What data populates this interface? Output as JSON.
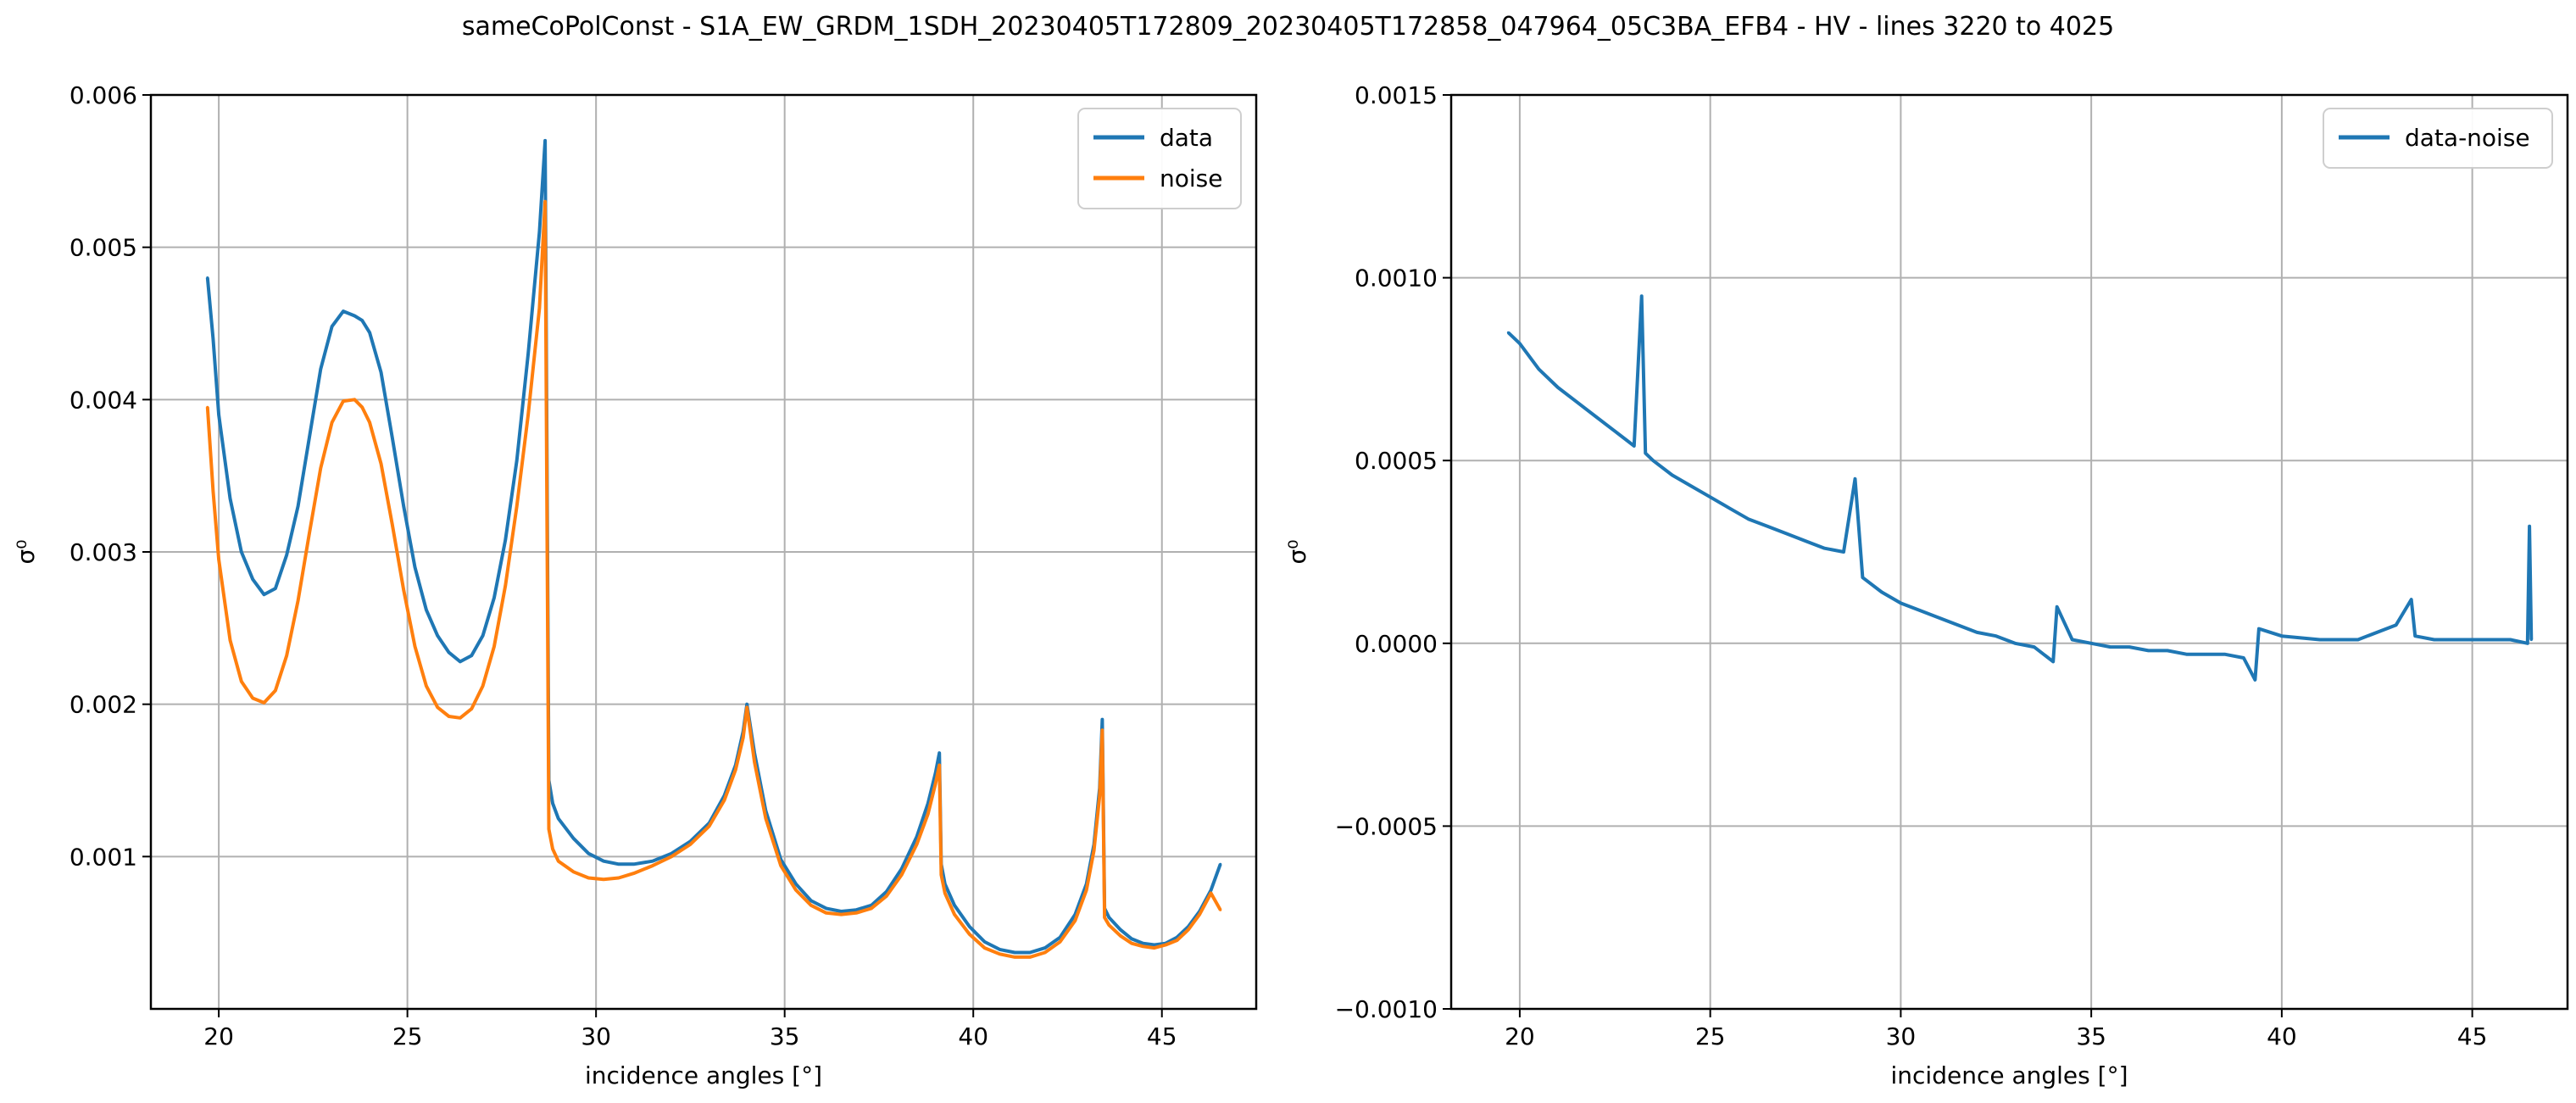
{
  "figure": {
    "title": "sameCoPolConst - S1A_EW_GRDM_1SDH_20230405T172809_20230405T172858_047964_05C3BA_EFB4 - HV - lines 3220 to 4025"
  },
  "colors": {
    "data": "#1f77b4",
    "noise": "#ff7f0e",
    "grid": "#b0b0b0",
    "axis": "#000000"
  },
  "chart_data": [
    {
      "type": "line",
      "xlabel": "incidence angles [°]",
      "ylabel": "σ⁰",
      "xlim": [
        18.2,
        47.5
      ],
      "ylim": [
        0.0,
        0.006
      ],
      "grid": true,
      "legend_position": "top-right",
      "xticks": [
        20,
        25,
        30,
        35,
        40,
        45
      ],
      "xtick_labels": [
        "20",
        "25",
        "30",
        "35",
        "40",
        "45"
      ],
      "yticks": [
        0.001,
        0.002,
        0.003,
        0.004,
        0.005,
        0.006
      ],
      "ytick_labels": [
        "0.001",
        "0.002",
        "0.003",
        "0.004",
        "0.005",
        "0.006"
      ],
      "series": [
        {
          "name": "data",
          "color": "#1f77b4",
          "x": [
            19.7,
            19.85,
            20.0,
            20.3,
            20.6,
            20.9,
            21.2,
            21.5,
            21.8,
            22.1,
            22.4,
            22.7,
            23.0,
            23.3,
            23.6,
            23.8,
            24.0,
            24.3,
            24.6,
            24.9,
            25.2,
            25.5,
            25.8,
            26.1,
            26.4,
            26.7,
            27.0,
            27.3,
            27.6,
            27.9,
            28.2,
            28.5,
            28.65,
            28.75,
            28.85,
            29.0,
            29.4,
            29.8,
            30.2,
            30.6,
            31.0,
            31.5,
            32.0,
            32.5,
            33.0,
            33.4,
            33.7,
            33.9,
            34.0,
            34.2,
            34.5,
            34.9,
            35.3,
            35.7,
            36.1,
            36.5,
            36.9,
            37.3,
            37.7,
            38.1,
            38.5,
            38.8,
            39.0,
            39.1,
            39.15,
            39.25,
            39.5,
            39.9,
            40.3,
            40.7,
            41.1,
            41.5,
            41.9,
            42.3,
            42.7,
            43.0,
            43.2,
            43.35,
            43.42,
            43.48,
            43.6,
            43.9,
            44.2,
            44.5,
            44.8,
            45.1,
            45.4,
            45.7,
            46.0,
            46.3,
            46.55
          ],
          "y": [
            0.0048,
            0.0044,
            0.0039,
            0.00335,
            0.003,
            0.00282,
            0.00272,
            0.00276,
            0.00298,
            0.0033,
            0.00375,
            0.0042,
            0.00448,
            0.00458,
            0.00455,
            0.00452,
            0.00444,
            0.00418,
            0.00375,
            0.0033,
            0.0029,
            0.00262,
            0.00245,
            0.00234,
            0.00228,
            0.00232,
            0.00245,
            0.0027,
            0.00308,
            0.0036,
            0.0043,
            0.0051,
            0.0057,
            0.0015,
            0.00135,
            0.00125,
            0.00112,
            0.00102,
            0.00097,
            0.00095,
            0.00095,
            0.00097,
            0.00102,
            0.0011,
            0.00122,
            0.0014,
            0.0016,
            0.00182,
            0.002,
            0.00168,
            0.0013,
            0.00098,
            0.00082,
            0.00071,
            0.00066,
            0.00064,
            0.00065,
            0.00068,
            0.00077,
            0.00092,
            0.00113,
            0.00135,
            0.00155,
            0.00168,
            0.00095,
            0.00082,
            0.00068,
            0.00054,
            0.00044,
            0.00039,
            0.00037,
            0.00037,
            0.0004,
            0.00047,
            0.00062,
            0.00082,
            0.00108,
            0.00145,
            0.0019,
            0.00066,
            0.0006,
            0.00052,
            0.00046,
            0.00043,
            0.00042,
            0.00043,
            0.00047,
            0.00054,
            0.00064,
            0.00078,
            0.00095
          ]
        },
        {
          "name": "noise",
          "color": "#ff7f0e",
          "x": [
            19.7,
            19.85,
            20.0,
            20.3,
            20.6,
            20.9,
            21.2,
            21.5,
            21.8,
            22.1,
            22.4,
            22.7,
            23.0,
            23.3,
            23.6,
            23.8,
            24.0,
            24.3,
            24.6,
            24.9,
            25.2,
            25.5,
            25.8,
            26.1,
            26.4,
            26.7,
            27.0,
            27.3,
            27.6,
            27.9,
            28.2,
            28.5,
            28.65,
            28.75,
            28.85,
            29.0,
            29.4,
            29.8,
            30.2,
            30.6,
            31.0,
            31.5,
            32.0,
            32.5,
            33.0,
            33.4,
            33.7,
            33.9,
            34.0,
            34.2,
            34.5,
            34.9,
            35.3,
            35.7,
            36.1,
            36.5,
            36.9,
            37.3,
            37.7,
            38.1,
            38.5,
            38.8,
            39.0,
            39.1,
            39.15,
            39.25,
            39.5,
            39.9,
            40.3,
            40.7,
            41.1,
            41.5,
            41.9,
            42.3,
            42.7,
            43.0,
            43.2,
            43.35,
            43.42,
            43.48,
            43.6,
            43.9,
            44.2,
            44.5,
            44.8,
            45.1,
            45.4,
            45.7,
            46.0,
            46.3,
            46.55
          ],
          "y": [
            0.00395,
            0.0034,
            0.00295,
            0.00242,
            0.00215,
            0.00204,
            0.00201,
            0.00209,
            0.00232,
            0.00268,
            0.00312,
            0.00355,
            0.00385,
            0.00399,
            0.004,
            0.00395,
            0.00385,
            0.00358,
            0.00318,
            0.00275,
            0.00238,
            0.00212,
            0.00198,
            0.00192,
            0.00191,
            0.00197,
            0.00212,
            0.00238,
            0.00278,
            0.0033,
            0.0039,
            0.0046,
            0.0053,
            0.00118,
            0.00105,
            0.00097,
            0.0009,
            0.00086,
            0.00085,
            0.00086,
            0.00089,
            0.00094,
            0.001,
            0.00108,
            0.0012,
            0.00137,
            0.00157,
            0.00178,
            0.00198,
            0.00162,
            0.00125,
            0.00094,
            0.00078,
            0.00068,
            0.00063,
            0.00062,
            0.00063,
            0.00066,
            0.00074,
            0.00088,
            0.00108,
            0.00128,
            0.00148,
            0.0016,
            0.00088,
            0.00076,
            0.00062,
            0.00049,
            0.0004,
            0.00036,
            0.00034,
            0.00034,
            0.00037,
            0.00044,
            0.00058,
            0.00078,
            0.00104,
            0.0014,
            0.00183,
            0.0006,
            0.00055,
            0.00048,
            0.00043,
            0.00041,
            0.0004,
            0.00042,
            0.00045,
            0.00052,
            0.00062,
            0.00076,
            0.00065
          ]
        }
      ]
    },
    {
      "type": "line",
      "xlabel": "incidence angles [°]",
      "ylabel": "σ⁰",
      "xlim": [
        18.2,
        47.5
      ],
      "ylim": [
        -0.001,
        0.0015
      ],
      "grid": true,
      "legend_position": "top-right",
      "xticks": [
        20,
        25,
        30,
        35,
        40,
        45
      ],
      "xtick_labels": [
        "20",
        "25",
        "30",
        "35",
        "40",
        "45"
      ],
      "yticks": [
        -0.001,
        -0.0005,
        0.0,
        0.0005,
        0.001,
        0.0015
      ],
      "ytick_labels": [
        "−0.0010",
        "−0.0005",
        "0.0000",
        "0.0005",
        "0.0010",
        "0.0015"
      ],
      "series": [
        {
          "name": "data-noise",
          "color": "#1f77b4",
          "x": [
            19.7,
            20.0,
            20.5,
            21.0,
            21.5,
            22.0,
            22.5,
            23.0,
            23.2,
            23.3,
            23.5,
            24.0,
            24.5,
            25.0,
            25.5,
            26.0,
            26.5,
            27.0,
            27.5,
            28.0,
            28.5,
            28.8,
            29.0,
            29.5,
            30.0,
            30.5,
            31.0,
            31.5,
            32.0,
            32.5,
            33.0,
            33.5,
            34.0,
            34.1,
            34.5,
            35.0,
            35.5,
            36.0,
            36.5,
            37.0,
            37.5,
            38.0,
            38.5,
            39.0,
            39.3,
            39.4,
            40.0,
            41.0,
            42.0,
            43.0,
            43.4,
            43.5,
            44.0,
            45.0,
            46.0,
            46.45,
            46.5,
            46.55
          ],
          "y": [
            0.00085,
            0.00082,
            0.00075,
            0.0007,
            0.00066,
            0.00062,
            0.00058,
            0.00054,
            0.00095,
            0.00052,
            0.0005,
            0.00046,
            0.00043,
            0.0004,
            0.00037,
            0.00034,
            0.00032,
            0.0003,
            0.00028,
            0.00026,
            0.00025,
            0.00045,
            0.00018,
            0.00014,
            0.00011,
            9e-05,
            7e-05,
            5e-05,
            3e-05,
            2e-05,
            0.0,
            -1e-05,
            -5e-05,
            0.0001,
            1e-05,
            0.0,
            -1e-05,
            -1e-05,
            -2e-05,
            -2e-05,
            -3e-05,
            -3e-05,
            -3e-05,
            -4e-05,
            -0.0001,
            4e-05,
            2e-05,
            1e-05,
            1e-05,
            5e-05,
            0.00012,
            2e-05,
            1e-05,
            1e-05,
            1e-05,
            0.0,
            0.00032,
            1e-05
          ]
        }
      ]
    }
  ]
}
